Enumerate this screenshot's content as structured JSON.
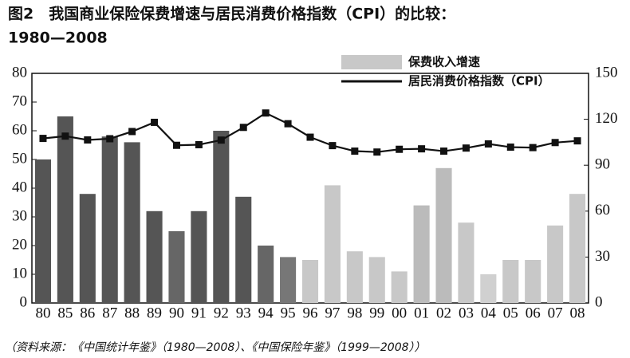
{
  "chart_data": {
    "type": "bar-line",
    "title": [
      "图2　我国商业保险保费增速与居民消费价格指数（CPI）的比较：",
      "1980—2008"
    ],
    "categories": [
      "80",
      "85",
      "86",
      "87",
      "88",
      "89",
      "90",
      "91",
      "92",
      "93",
      "94",
      "95",
      "96",
      "97",
      "98",
      "99",
      "00",
      "01",
      "02",
      "03",
      "04",
      "05",
      "06",
      "07",
      "08"
    ],
    "series": [
      {
        "name": "保费收入增速",
        "type": "bar",
        "colors": [
          "#555",
          "#555",
          "#555",
          "#555",
          "#555",
          "#555",
          "#666",
          "#555",
          "#555",
          "#555",
          "#666",
          "#777",
          "#c8c8c8",
          "#c8c8c8",
          "#c8c8c8",
          "#c8c8c8",
          "#c8c8c8",
          "#bbb",
          "#bbb",
          "#c8c8c8",
          "#d0d0d0",
          "#c8c8c8",
          "#c8c8c8",
          "#c8c8c8",
          "#c8c8c8"
        ],
        "color": "#c8c8c8",
        "values": [
          50,
          65,
          38,
          58,
          56,
          32,
          25,
          32,
          60,
          37,
          20,
          16,
          15,
          41,
          18,
          16,
          11,
          34,
          47,
          28,
          10,
          15,
          15,
          27,
          38
        ]
      },
      {
        "name": "居民消费价格指数（CPI）",
        "type": "line",
        "axis": "y2",
        "color": "#111",
        "values": [
          107.5,
          109,
          106.5,
          107.3,
          112,
          118,
          103,
          103.4,
          106.4,
          114.7,
          124.1,
          117.1,
          108.3,
          102.8,
          99.2,
          98.6,
          100.4,
          100.7,
          99.2,
          101.2,
          103.9,
          101.8,
          101.5,
          104.8,
          105.9
        ]
      }
    ],
    "ylim": [
      0,
      80
    ],
    "yticks": [
      0,
      10,
      20,
      30,
      40,
      50,
      60,
      70,
      80
    ],
    "y2lim": [
      0,
      150
    ],
    "y2ticks": [
      0,
      30,
      60,
      90,
      120,
      150
    ],
    "note": "（资料来源：《中国统计年鉴》（1980—2008）、《中国保险年鉴》（1999—2008））"
  }
}
